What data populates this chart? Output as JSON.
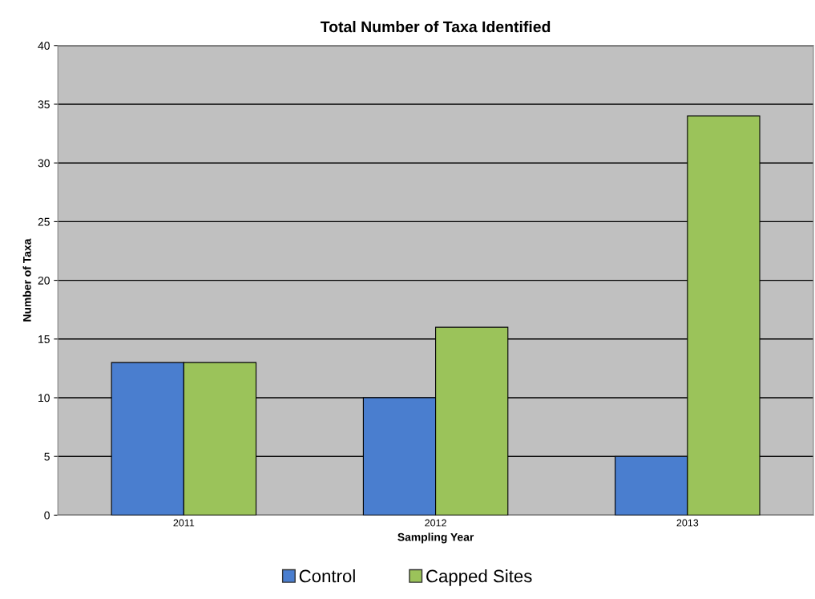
{
  "chart_data": {
    "type": "bar",
    "title": "Total Number of Taxa Identified",
    "xlabel": "Sampling Year",
    "ylabel": "Number of Taxa",
    "categories": [
      "2011",
      "2012",
      "2013"
    ],
    "series": [
      {
        "name": "Control",
        "color": "#4a7ecf",
        "values": [
          13,
          10,
          5
        ]
      },
      {
        "name": "Capped Sites",
        "color": "#9bc35a",
        "values": [
          13,
          16,
          34
        ]
      }
    ],
    "ylim": [
      0,
      40
    ],
    "yticks": [
      0,
      5,
      10,
      15,
      20,
      25,
      30,
      35,
      40
    ],
    "grid": "y",
    "legend": "bottom"
  }
}
